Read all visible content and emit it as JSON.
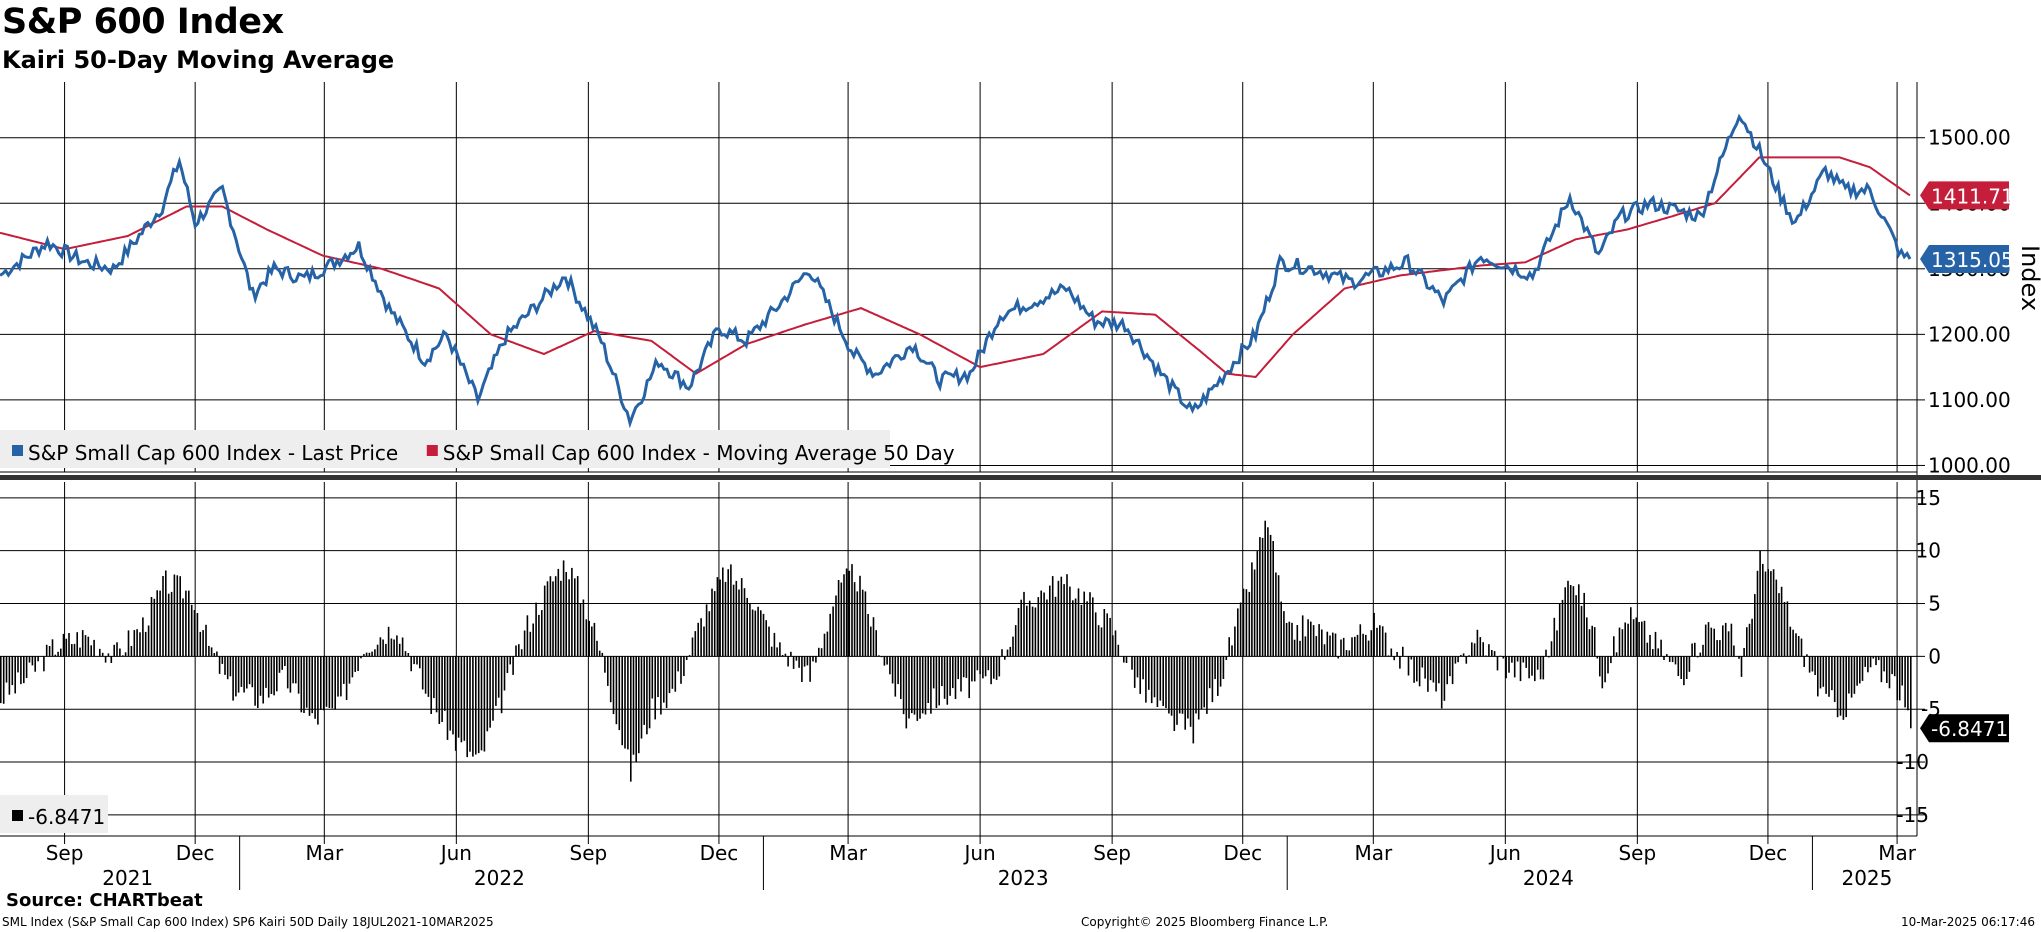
{
  "title": "S&P 600 Index",
  "subtitle": "Kairi 50-Day Moving Average",
  "source": "Source: CHARTbeat",
  "footer": {
    "left": "SML Index (S&P Small Cap 600 Index) SP6 Kairi 50D  Daily 18JUL2021-10MAR2025",
    "center": "Copyright© 2025 Bloomberg Finance L.P.",
    "right": "10-Mar-2025 06:17:46"
  },
  "colors": {
    "price": "#2563A6",
    "ma": "#C41E3A",
    "kairi": "#000000",
    "grid": "#000000"
  },
  "chart_data": [
    {
      "type": "line",
      "name": "price-panel",
      "ylabel": "Index",
      "ylim": [
        990,
        1585
      ],
      "yticks": [
        1000,
        1100,
        1200,
        1300,
        1400,
        1500
      ],
      "ytick_labels": [
        "1000.00",
        "1100.00",
        "1200.00",
        "1300.00",
        "1400.00",
        "1500.00"
      ],
      "x_range": [
        "2021-07-18",
        "2025-03-10"
      ],
      "legend": [
        {
          "label": "S&P Small Cap 600 Index - Last Price",
          "color": "#2563A6"
        },
        {
          "label": "S&P Small Cap 600 Index - Moving Average 50 Day",
          "color": "#C41E3A"
        }
      ],
      "last_labels": [
        {
          "text": "1411.71",
          "series": "ma"
        },
        {
          "text": "1315.05",
          "series": "price"
        }
      ],
      "series": [
        {
          "name": "S&P Small Cap 600 Index - Last Price",
          "key": "price",
          "x": [
            "2021-07-18",
            "2021-08-20",
            "2021-09-15",
            "2021-10-05",
            "2021-11-08",
            "2021-11-20",
            "2021-12-01",
            "2021-12-20",
            "2022-01-10",
            "2022-01-25",
            "2022-02-15",
            "2022-03-08",
            "2022-03-25",
            "2022-04-15",
            "2022-05-10",
            "2022-05-25",
            "2022-06-16",
            "2022-07-05",
            "2022-08-16",
            "2022-09-10",
            "2022-09-30",
            "2022-10-20",
            "2022-11-10",
            "2022-12-01",
            "2022-12-20",
            "2023-01-10",
            "2023-02-02",
            "2023-03-05",
            "2023-03-20",
            "2023-04-15",
            "2023-05-04",
            "2023-05-25",
            "2023-06-15",
            "2023-07-31",
            "2023-08-20",
            "2023-09-10",
            "2023-10-05",
            "2023-10-27",
            "2023-11-15",
            "2023-12-10",
            "2023-12-27",
            "2024-01-20",
            "2024-02-15",
            "2024-03-25",
            "2024-04-19",
            "2024-05-15",
            "2024-06-20",
            "2024-07-16",
            "2024-08-05",
            "2024-08-20",
            "2024-09-10",
            "2024-10-15",
            "2024-11-11",
            "2024-11-25",
            "2024-12-10",
            "2024-12-20",
            "2025-01-10",
            "2025-01-24",
            "2025-02-10",
            "2025-03-04",
            "2025-03-10"
          ],
          "values": [
            1290,
            1340,
            1310,
            1300,
            1395,
            1465,
            1370,
            1420,
            1260,
            1300,
            1285,
            1310,
            1335,
            1240,
            1160,
            1200,
            1100,
            1195,
            1290,
            1190,
            1070,
            1160,
            1120,
            1210,
            1190,
            1240,
            1300,
            1170,
            1140,
            1185,
            1130,
            1140,
            1230,
            1270,
            1220,
            1215,
            1140,
            1080,
            1130,
            1200,
            1310,
            1300,
            1280,
            1310,
            1250,
            1320,
            1290,
            1410,
            1320,
            1380,
            1400,
            1380,
            1540,
            1480,
            1410,
            1370,
            1450,
            1420,
            1420,
            1320,
            1315
          ]
        },
        {
          "name": "S&P Small Cap 600 Index - Moving Average 50 Day",
          "key": "ma",
          "x": [
            "2021-07-18",
            "2021-09-01",
            "2021-10-15",
            "2021-11-25",
            "2021-12-20",
            "2022-01-20",
            "2022-02-28",
            "2022-04-10",
            "2022-05-20",
            "2022-06-25",
            "2022-08-01",
            "2022-09-05",
            "2022-10-15",
            "2022-11-15",
            "2022-12-20",
            "2023-01-30",
            "2023-03-10",
            "2023-04-20",
            "2023-06-01",
            "2023-07-15",
            "2023-08-25",
            "2023-10-01",
            "2023-11-01",
            "2023-11-20",
            "2023-12-10",
            "2024-01-05",
            "2024-02-10",
            "2024-03-20",
            "2024-05-15",
            "2024-06-15",
            "2024-07-20",
            "2024-08-25",
            "2024-09-25",
            "2024-10-25",
            "2024-11-25",
            "2024-12-15",
            "2025-01-20",
            "2025-02-10",
            "2025-03-10"
          ],
          "values": [
            1355,
            1330,
            1350,
            1395,
            1395,
            1360,
            1320,
            1300,
            1270,
            1200,
            1170,
            1205,
            1190,
            1140,
            1185,
            1215,
            1240,
            1200,
            1150,
            1170,
            1235,
            1230,
            1175,
            1140,
            1135,
            1200,
            1270,
            1290,
            1305,
            1310,
            1345,
            1360,
            1380,
            1400,
            1470,
            1470,
            1470,
            1455,
            1412
          ]
        }
      ]
    },
    {
      "type": "bar",
      "name": "kairi-panel",
      "series_name": "Kairi 50D",
      "ylim": [
        -17,
        16.5
      ],
      "yticks": [
        -15,
        -10,
        -5,
        0,
        5,
        10,
        15
      ],
      "ytick_labels": [
        "-15",
        "-10",
        "-5",
        "0",
        "5",
        "10",
        "15"
      ],
      "legend": [
        {
          "label": "-6.8471",
          "color": "#000000"
        }
      ],
      "last_label": "-6.8471",
      "x": [
        "2021-07-18",
        "2021-08-05",
        "2021-08-25",
        "2021-09-15",
        "2021-10-05",
        "2021-10-25",
        "2021-11-10",
        "2021-11-28",
        "2021-12-10",
        "2021-12-25",
        "2022-01-15",
        "2022-02-01",
        "2022-02-20",
        "2022-03-10",
        "2022-03-28",
        "2022-04-20",
        "2022-05-12",
        "2022-05-31",
        "2022-06-16",
        "2022-06-30",
        "2022-07-20",
        "2022-08-05",
        "2022-08-16",
        "2022-09-01",
        "2022-09-12",
        "2022-09-30",
        "2022-10-15",
        "2022-10-31",
        "2022-11-20",
        "2022-12-05",
        "2022-12-22",
        "2023-01-10",
        "2023-02-02",
        "2023-02-20",
        "2023-03-05",
        "2023-03-20",
        "2023-04-10",
        "2023-05-01",
        "2023-05-20",
        "2023-06-10",
        "2023-07-01",
        "2023-07-25",
        "2023-08-10",
        "2023-08-30",
        "2023-09-20",
        "2023-10-10",
        "2023-10-27",
        "2023-11-15",
        "2023-12-05",
        "2023-12-18",
        "2023-12-31",
        "2024-01-15",
        "2024-02-05",
        "2024-03-01",
        "2024-03-25",
        "2024-04-19",
        "2024-05-10",
        "2024-06-01",
        "2024-06-25",
        "2024-07-16",
        "2024-07-31",
        "2024-08-07",
        "2024-08-25",
        "2024-09-15",
        "2024-10-01",
        "2024-10-20",
        "2024-11-05",
        "2024-11-12",
        "2024-11-25",
        "2024-12-10",
        "2024-12-20",
        "2025-01-08",
        "2025-01-24",
        "2025-02-10",
        "2025-02-25",
        "2025-03-04",
        "2025-03-10"
      ],
      "values": [
        -4,
        -2,
        1,
        2,
        0,
        3,
        7,
        6,
        1,
        -3,
        -4,
        -2,
        -6,
        -5,
        1,
        3,
        -4,
        -8,
        -10,
        -5,
        3,
        7,
        9,
        4,
        -1,
        -11,
        -5,
        -3,
        4,
        8,
        6,
        1,
        -2,
        6,
        8,
        2,
        -6,
        -4,
        -3,
        -2,
        5,
        7,
        6,
        3,
        -3,
        -6,
        -7,
        -2,
        7,
        13,
        2,
        3,
        1,
        3,
        -1,
        -4,
        2,
        -1,
        -2,
        8,
        3,
        -2,
        4,
        1,
        -2,
        3,
        2,
        -1,
        9,
        6,
        2,
        -4,
        -5,
        -1,
        -2,
        -4,
        -6.8
      ]
    }
  ],
  "x_axis": {
    "month_ticks": [
      {
        "label": "Sep",
        "date": "2021-09-01"
      },
      {
        "label": "Dec",
        "date": "2021-12-01"
      },
      {
        "label": "Mar",
        "date": "2022-03-01"
      },
      {
        "label": "Jun",
        "date": "2022-06-01"
      },
      {
        "label": "Sep",
        "date": "2022-09-01"
      },
      {
        "label": "Dec",
        "date": "2022-12-01"
      },
      {
        "label": "Mar",
        "date": "2023-03-01"
      },
      {
        "label": "Jun",
        "date": "2023-06-01"
      },
      {
        "label": "Sep",
        "date": "2023-09-01"
      },
      {
        "label": "Dec",
        "date": "2023-12-01"
      },
      {
        "label": "Mar",
        "date": "2024-03-01"
      },
      {
        "label": "Jun",
        "date": "2024-06-01"
      },
      {
        "label": "Sep",
        "date": "2024-09-01"
      },
      {
        "label": "Dec",
        "date": "2024-12-01"
      },
      {
        "label": "Mar",
        "date": "2025-03-01"
      }
    ],
    "year_labels": [
      {
        "label": "2021",
        "date": "2021-10-15"
      },
      {
        "label": "2022",
        "date": "2022-07-01"
      },
      {
        "label": "2023",
        "date": "2023-07-01"
      },
      {
        "label": "2024",
        "date": "2024-07-01"
      },
      {
        "label": "2025",
        "date": "2025-02-08"
      }
    ],
    "year_separators": [
      "2022-01-01",
      "2023-01-01",
      "2024-01-01",
      "2025-01-01"
    ]
  }
}
